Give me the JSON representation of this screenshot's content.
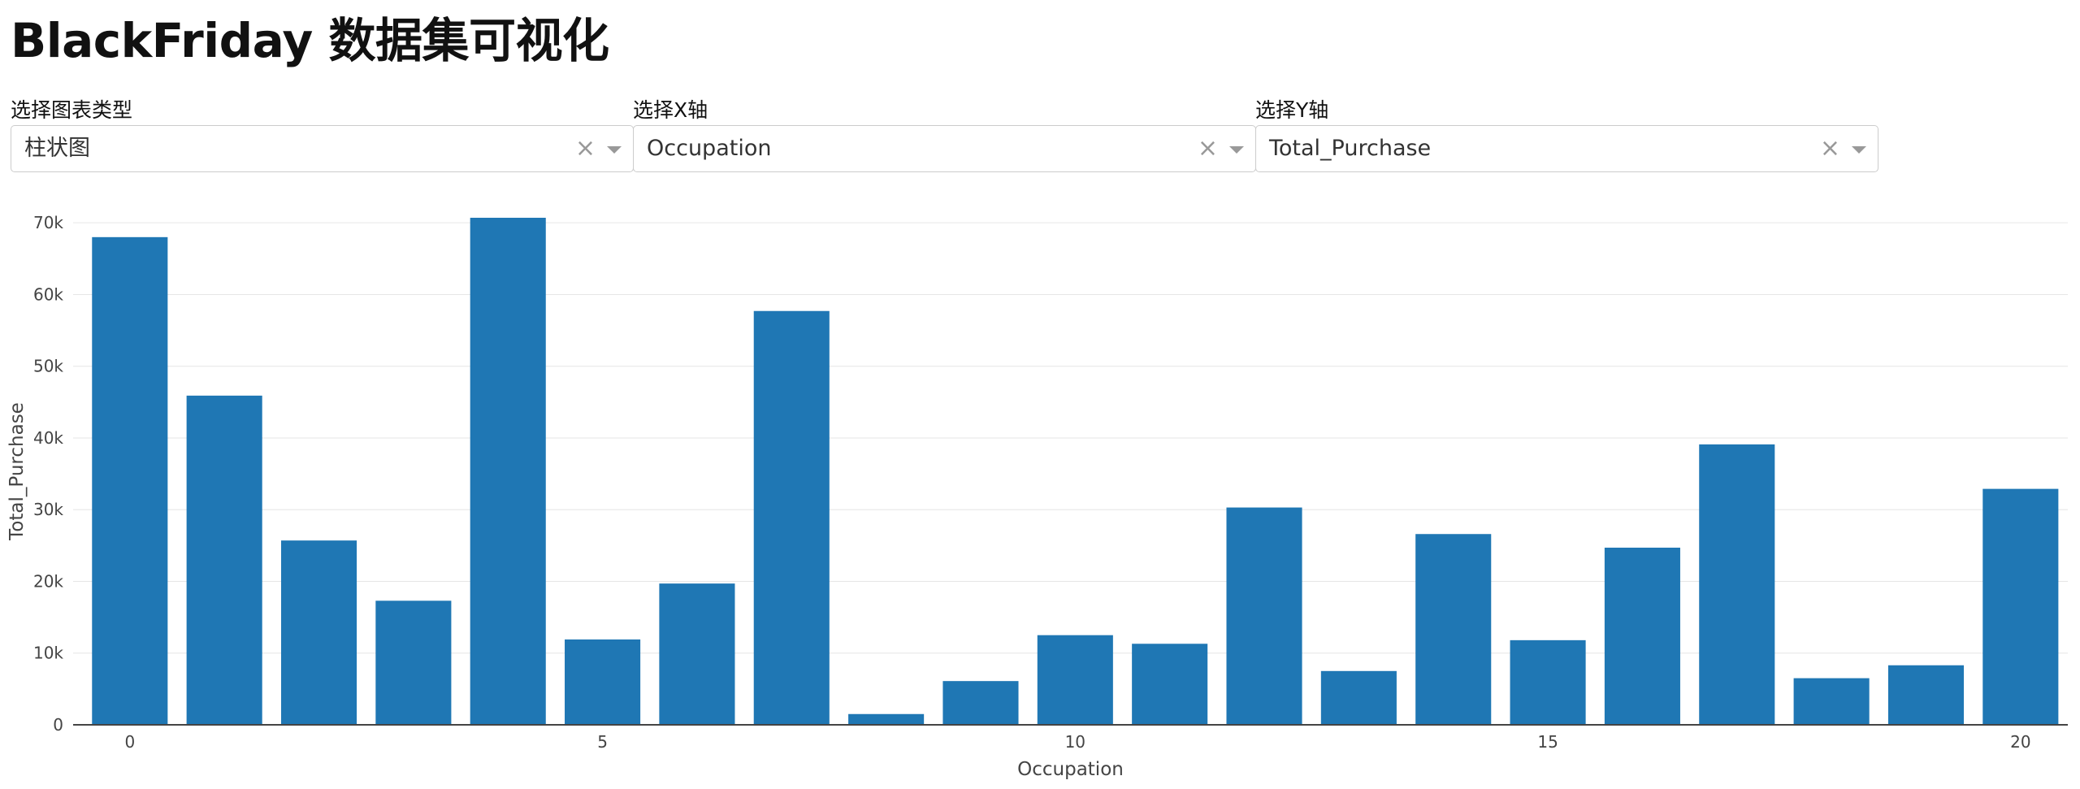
{
  "header": {
    "title": "BlackFriday 数据集可视化"
  },
  "controls": {
    "chart_type": {
      "label": "选择图表类型",
      "value": "柱状图"
    },
    "x_axis": {
      "label": "选择X轴",
      "value": "Occupation"
    },
    "y_axis": {
      "label": "选择Y轴",
      "value": "Total_Purchase"
    },
    "clear_glyph": "×"
  },
  "colors": {
    "bar": "#1f77b4",
    "grid": "#e6e6e6",
    "axis": "#444444"
  },
  "chart_data": {
    "type": "bar",
    "title": "",
    "xlabel": "Occupation",
    "ylabel": "Total_Purchase",
    "x": [
      0,
      1,
      2,
      3,
      4,
      5,
      6,
      7,
      8,
      9,
      10,
      11,
      12,
      13,
      14,
      15,
      16,
      17,
      18,
      19,
      20
    ],
    "values": [
      68000,
      45900,
      25700,
      17300,
      70700,
      11900,
      19700,
      57700,
      1500,
      6100,
      12500,
      11300,
      30300,
      7500,
      26600,
      11800,
      24700,
      39100,
      6500,
      8300,
      32900
    ],
    "xlim": [
      -0.6,
      20.5
    ],
    "ylim": [
      0,
      70700
    ],
    "x_ticks": [
      0,
      5,
      10,
      15,
      20
    ],
    "x_tick_labels": [
      "0",
      "5",
      "10",
      "15",
      "20"
    ],
    "y_ticks": [
      0,
      10000,
      20000,
      30000,
      40000,
      50000,
      60000,
      70000
    ],
    "y_tick_labels": [
      "0",
      "10k",
      "20k",
      "30k",
      "40k",
      "50k",
      "60k",
      "70k"
    ],
    "grid": true,
    "legend": "none"
  }
}
